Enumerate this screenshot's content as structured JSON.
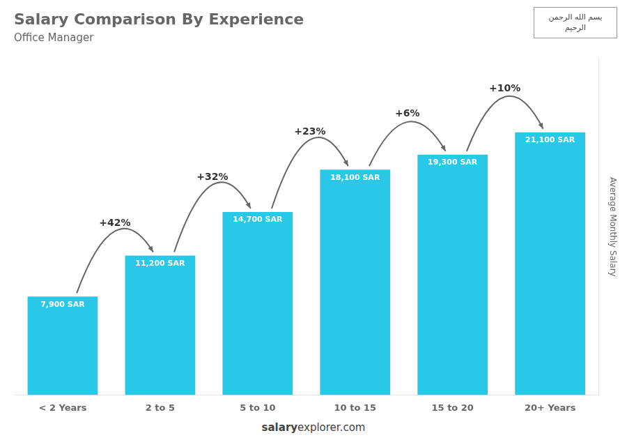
{
  "chart_data": {
    "type": "bar",
    "title": "Salary Comparison By Experience",
    "subtitle": "Office Manager",
    "categories": [
      "< 2 Years",
      "2 to 5",
      "5 to 10",
      "10 to 15",
      "15 to 20",
      "20+ Years"
    ],
    "values": [
      7900,
      11200,
      14700,
      18100,
      19300,
      21100
    ],
    "value_labels": [
      "7,900 SAR",
      "11,200 SAR",
      "14,700 SAR",
      "18,100 SAR",
      "19,300 SAR",
      "21,100 SAR"
    ],
    "data_labels": true,
    "color": "#29c8e6",
    "ylim": [
      0,
      27000
    ],
    "ylabel": "Average Monthly Salary",
    "tick_labels": "x",
    "grid": false,
    "annotations": [
      "+42%",
      "+32%",
      "+23%",
      "+6%",
      "+10%"
    ],
    "footer": [
      "salary",
      "explorer.com"
    ],
    "flag_text": [
      "بسم الله الرحمن",
      "الرحيم"
    ]
  }
}
